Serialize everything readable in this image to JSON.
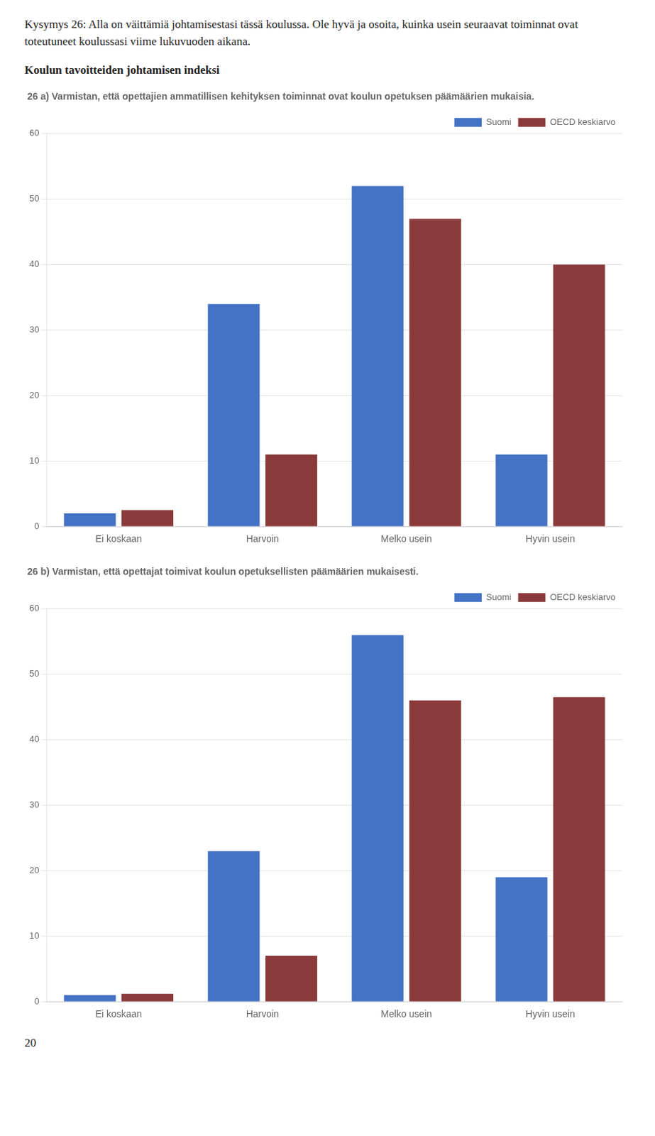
{
  "chart_data": [
    {
      "type": "bar",
      "title": "26 a) Varmistan, että opettajien ammatillisen kehityksen toiminnat ovat koulun opetuksen päämäärien mukaisia.",
      "annotations": [
        "Kysymys 26: Alla on väittämiä johtamisestasi tässä koulussa. Ole hyvä ja osoita, kuinka usein seuraavat toiminnat ovat toteutuneet koulussasi viime lukuvuoden aikana.",
        "Koulun tavoitteiden johtamisen indeksi"
      ],
      "categories": [
        "Ei koskaan",
        "Harvoin",
        "Melko usein",
        "Hyvin usein"
      ],
      "series": [
        {
          "name": "Suomi",
          "color": "#4472C4",
          "values": [
            2,
            34,
            52,
            11
          ]
        },
        {
          "name": "OECD keskiarvo",
          "color": "#8B3A3A",
          "values": [
            2.5,
            11,
            47,
            40
          ]
        }
      ],
      "ylim": [
        0,
        60
      ],
      "yticks": [
        0,
        10,
        20,
        30,
        40,
        50,
        60
      ],
      "grid": true,
      "legend": "upper right"
    },
    {
      "type": "bar",
      "title": "26 b) Varmistan, että opettajat toimivat koulun opetuksellisten päämäärien mukaisesti.",
      "annotations": [
        "20"
      ],
      "categories": [
        "Ei koskaan",
        "Harvoin",
        "Melko usein",
        "Hyvin usein"
      ],
      "series": [
        {
          "name": "Suomi",
          "color": "#4472C4",
          "values": [
            1,
            23,
            56,
            19
          ]
        },
        {
          "name": "OECD keskiarvo",
          "color": "#8B3A3A",
          "values": [
            1.2,
            7,
            46,
            46.5
          ]
        }
      ],
      "ylim": [
        0,
        60
      ],
      "yticks": [
        0,
        10,
        20,
        30,
        40,
        50,
        60
      ],
      "grid": true,
      "legend": "upper right"
    }
  ]
}
